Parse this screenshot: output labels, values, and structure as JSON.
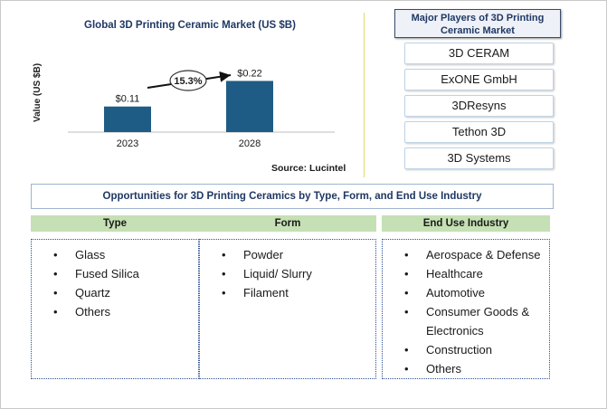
{
  "chart_data": {
    "type": "bar",
    "title": "Global  3D Printing  Ceramic  Market  (US $B)",
    "ylabel": "Value (US $B)",
    "categories": [
      "2023",
      "2028"
    ],
    "values": [
      0.11,
      0.22
    ],
    "value_labels": [
      "$0.11",
      "$0.22"
    ],
    "ylim": [
      0,
      0.28
    ],
    "cagr_label": "15.3%",
    "bar_color": "#1f5c85",
    "source": "Source: Lucintel"
  },
  "players": {
    "title": "Major Players of 3D Printing Ceramic Market",
    "items": [
      "3D CERAM",
      "ExONE GmbH",
      "3DResyns",
      "Tethon 3D",
      "3D Systems"
    ]
  },
  "opportunities": {
    "title": "Opportunities for 3D Printing Ceramics by Type, Form, and End Use Industry",
    "columns": [
      {
        "heading": "Type",
        "items": [
          "Glass",
          "Fused Silica",
          "Quartz",
          "Others"
        ]
      },
      {
        "heading": "Form",
        "items": [
          "Powder",
          "Liquid/ Slurry",
          "Filament"
        ]
      },
      {
        "heading": "End Use Industry",
        "items": [
          "Aerospace & Defense",
          "Healthcare",
          "Automotive",
          "Consumer Goods & Electronics",
          "Construction",
          "Others"
        ]
      }
    ]
  },
  "colors": {
    "header_green": "#c5e0b4",
    "title_navy": "#1f3864"
  }
}
